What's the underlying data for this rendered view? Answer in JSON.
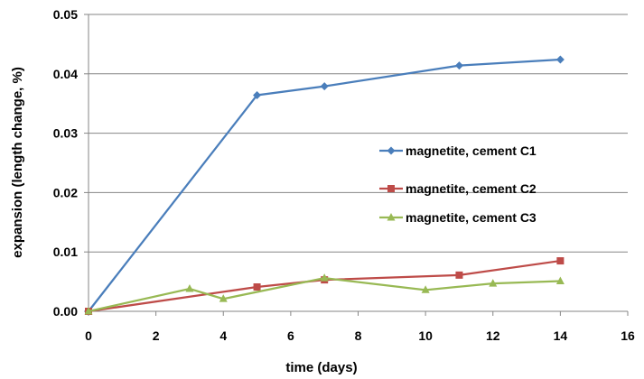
{
  "chart_data": {
    "type": "line",
    "xlabel": "time (days)",
    "ylabel": "expansion (length change, %)",
    "xlim": [
      0,
      16
    ],
    "ylim": [
      0,
      0.05
    ],
    "xticks": [
      0,
      2,
      4,
      6,
      8,
      10,
      12,
      14,
      16
    ],
    "yticks": [
      "0.00",
      "0.01",
      "0.02",
      "0.03",
      "0.04",
      "0.05"
    ],
    "yticks_values": [
      0,
      0.01,
      0.02,
      0.03,
      0.04,
      0.05
    ],
    "grid": "horizontal",
    "legend_position": "right",
    "series": [
      {
        "name": "magnetite, cement C1",
        "color": "#4a7ebb",
        "marker": "diamond",
        "x": [
          0,
          5,
          7,
          11,
          14
        ],
        "y": [
          0.0,
          0.0364,
          0.0379,
          0.0414,
          0.0424
        ]
      },
      {
        "name": "magnetite, cement C2",
        "color": "#be4b48",
        "marker": "square",
        "x": [
          0,
          5,
          7,
          11,
          14
        ],
        "y": [
          0.0,
          0.0041,
          0.0053,
          0.0061,
          0.0085
        ]
      },
      {
        "name": "magnetite, cement C3",
        "color": "#98b954",
        "marker": "triangle",
        "x": [
          0,
          3,
          4,
          7,
          10,
          12,
          14
        ],
        "y": [
          0.0,
          0.0038,
          0.0021,
          0.0056,
          0.0036,
          0.0047,
          0.0051
        ]
      }
    ]
  }
}
